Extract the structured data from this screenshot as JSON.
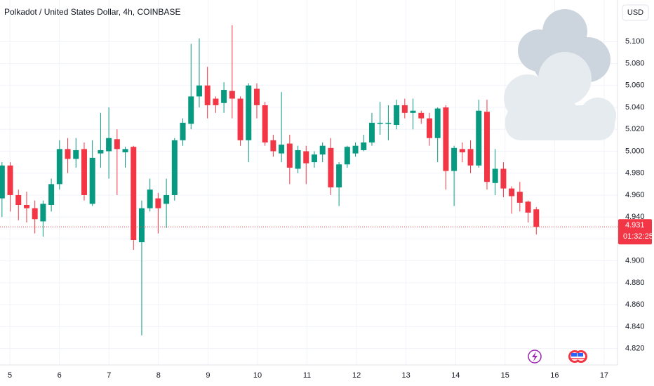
{
  "chart_data": {
    "type": "candlestick",
    "title": "Polkadot / United States Dollar, 4h, COINBASE",
    "currency": "USD",
    "up_color": "#089981",
    "down_color": "#f23645",
    "x": [
      4.84,
      5.006,
      5.172,
      5.338,
      5.504,
      5.67,
      5.836,
      6.002,
      6.168,
      6.334,
      6.5,
      6.666,
      6.832,
      6.998,
      7.164,
      7.33,
      7.496,
      7.662,
      7.828,
      7.994,
      8.16,
      8.326,
      8.492,
      8.658,
      8.824,
      8.99,
      9.156,
      9.322,
      9.488,
      9.654,
      9.82,
      9.986,
      10.152,
      10.318,
      10.484,
      10.65,
      10.816,
      10.982,
      11.148,
      11.314,
      11.48,
      11.646,
      11.812,
      11.978,
      12.144,
      12.31,
      12.476,
      12.642,
      12.808,
      12.974,
      13.14,
      13.306,
      13.472,
      13.638,
      13.804,
      13.97,
      14.136,
      14.302,
      14.468,
      14.634,
      14.8,
      14.966,
      15.132,
      15.298,
      15.464,
      15.63
    ],
    "open": [
      4.957,
      4.987,
      4.96,
      4.951,
      4.948,
      4.936,
      4.951,
      4.97,
      5.002,
      4.993,
      5.002,
      4.952,
      4.998,
      5.0,
      5.011,
      4.999,
      5.004,
      4.917,
      4.948,
      4.957,
      4.952,
      4.96,
      5.01,
      5.025,
      5.05,
      5.06,
      5.048,
      5.044,
      5.055,
      5.048,
      5.01,
      5.057,
      5.042,
      5.01,
      4.998,
      5.007,
      4.984,
      5.0,
      4.99,
      4.997,
      5.003,
      4.967,
      4.988,
      4.998,
      5.001,
      5.008,
      5.025,
      5.025,
      5.024,
      5.042,
      5.035,
      5.035,
      5.03,
      5.012,
      5.04,
      4.982,
      5.002,
      5.002,
      4.987,
      5.036,
      4.971,
      4.984,
      4.966,
      4.963,
      4.954,
      4.947
    ],
    "high": [
      4.99,
      4.99,
      4.965,
      4.963,
      4.955,
      4.955,
      4.975,
      5.01,
      5.012,
      5.012,
      5.008,
      5.01,
      5.035,
      5.04,
      5.02,
      5.004,
      5.005,
      4.955,
      4.975,
      4.962,
      4.975,
      5.012,
      5.03,
      5.098,
      5.103,
      5.077,
      5.05,
      5.063,
      5.115,
      5.05,
      5.062,
      5.062,
      5.045,
      5.015,
      5.054,
      5.015,
      5.005,
      5.005,
      5.0,
      5.008,
      5.012,
      4.99,
      5.005,
      5.008,
      5.015,
      5.035,
      5.045,
      5.042,
      5.047,
      5.048,
      5.048,
      5.037,
      5.035,
      5.04,
      5.042,
      5.005,
      5.008,
      5.01,
      5.047,
      5.047,
      5.002,
      4.99,
      4.968,
      4.972,
      4.955,
      4.949
    ],
    "low": [
      4.94,
      4.945,
      4.937,
      4.935,
      4.925,
      4.922,
      4.945,
      4.965,
      4.98,
      4.985,
      4.955,
      4.95,
      4.985,
      4.975,
      4.96,
      4.985,
      4.91,
      4.832,
      4.945,
      4.925,
      4.93,
      4.955,
      5.005,
      5.02,
      5.04,
      5.03,
      5.035,
      5.035,
      5.03,
      5.005,
      4.99,
      5.03,
      5.005,
      4.995,
      4.99,
      4.97,
      4.98,
      4.97,
      4.985,
      4.99,
      4.96,
      4.95,
      4.985,
      4.995,
      5.0,
      5.005,
      5.015,
      5.01,
      5.02,
      5.03,
      5.02,
      5.025,
      5.005,
      4.99,
      4.965,
      4.95,
      4.99,
      4.98,
      4.985,
      4.965,
      4.96,
      4.958,
      4.943,
      4.945,
      4.935,
      4.924
    ],
    "close": [
      4.987,
      4.96,
      4.951,
      4.948,
      4.938,
      4.952,
      4.97,
      5.002,
      4.993,
      5.001,
      4.96,
      4.994,
      5.001,
      5.012,
      5.002,
      5.002,
      4.919,
      4.948,
      4.965,
      4.948,
      4.96,
      5.01,
      5.026,
      5.05,
      5.06,
      5.042,
      5.042,
      5.056,
      5.048,
      5.01,
      5.06,
      5.042,
      5.008,
      5.0,
      5.006,
      4.985,
      5.001,
      4.989,
      4.997,
      5.005,
      4.967,
      4.988,
      5.004,
      5.005,
      5.008,
      5.026,
      5.026,
      5.026,
      5.042,
      5.035,
      5.037,
      5.03,
      5.012,
      5.039,
      4.982,
      5.003,
      4.999,
      4.987,
      5.037,
      4.972,
      4.984,
      4.966,
      4.959,
      4.953,
      4.944,
      4.931
    ],
    "xlim": [
      4.8,
      17.27
    ],
    "xticks": [
      5,
      6,
      7,
      8,
      9,
      10,
      11,
      12,
      13,
      14,
      15,
      16,
      17
    ],
    "ylim": [
      4.805,
      5.138
    ],
    "yticks": [
      {
        "value": 4.82,
        "label": "4.820"
      },
      {
        "value": 4.84,
        "label": "4.840"
      },
      {
        "value": 4.86,
        "label": "4.860"
      },
      {
        "value": 4.88,
        "label": "4.880"
      },
      {
        "value": 4.9,
        "label": "4.900"
      },
      {
        "value": 4.92,
        "label": "4.920"
      },
      {
        "value": 4.94,
        "label": "4.940"
      },
      {
        "value": 4.96,
        "label": "4.960"
      },
      {
        "value": 4.98,
        "label": "4.980"
      },
      {
        "value": 5.0,
        "label": "5.000"
      },
      {
        "value": 5.02,
        "label": "5.020"
      },
      {
        "value": 5.04,
        "label": "5.040"
      },
      {
        "value": 5.06,
        "label": "5.060"
      },
      {
        "value": 5.08,
        "label": "5.080"
      },
      {
        "value": 5.1,
        "label": "5.100"
      }
    ],
    "grid": true,
    "last_price": 4.931,
    "countdown": "01:32:25"
  }
}
